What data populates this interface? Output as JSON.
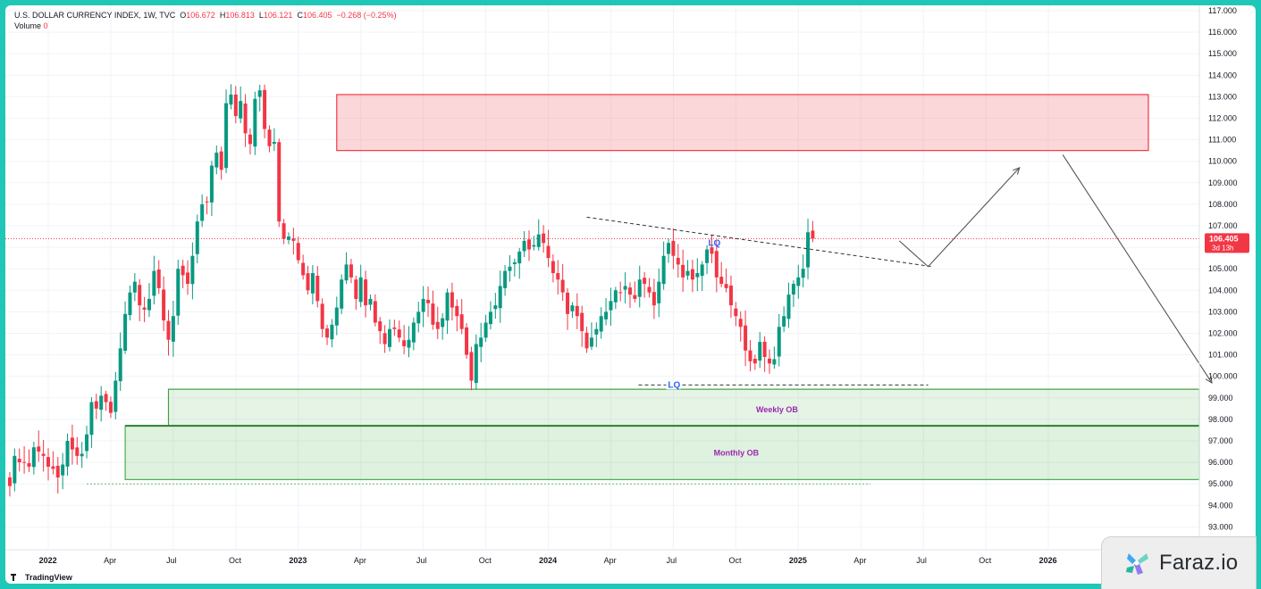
{
  "header": {
    "symbol": "U.S. DOLLAR CURRENCY INDEX, 1W, TVC",
    "open_label": "O",
    "open": "106.672",
    "high_label": "H",
    "high": "106.813",
    "low_label": "L",
    "low": "106.121",
    "close_label": "C",
    "close": "106.405",
    "change": "−0.268 (−0.25%)",
    "volume_label": "Volume",
    "volume": "0"
  },
  "price_tag": {
    "price": "106.405",
    "countdown": "3d 13h",
    "color": "#f23645"
  },
  "watermark": {
    "brand": "Faraz.io"
  },
  "footer": {
    "tradingview": "TradingView"
  },
  "colors": {
    "up": "#089981",
    "down": "#f23645",
    "grid": "#f0f3fa",
    "axis_text": "#131722",
    "lq": "#2962ff",
    "ob_text": "#9c27b0"
  },
  "chart_data": {
    "type": "candlestick",
    "title": "U.S. DOLLAR CURRENCY INDEX, 1W, TVC",
    "ylim": [
      92.0,
      117.5
    ],
    "y_ticks": [
      "117.000",
      "116.000",
      "115.000",
      "114.000",
      "113.000",
      "112.000",
      "111.000",
      "110.000",
      "109.000",
      "108.000",
      "107.000",
      "106.000",
      "105.000",
      "104.000",
      "103.000",
      "102.000",
      "101.000",
      "100.000",
      "99.000",
      "98.000",
      "97.000",
      "96.000",
      "95.000",
      "94.000",
      "93.000"
    ],
    "x_ticks": [
      {
        "label": "2022",
        "w": 0,
        "bold": true
      },
      {
        "label": "Apr",
        "w": 13
      },
      {
        "label": "Jul",
        "w": 26
      },
      {
        "label": "Oct",
        "w": 39
      },
      {
        "label": "2023",
        "w": 52,
        "bold": true
      },
      {
        "label": "Apr",
        "w": 65
      },
      {
        "label": "Jul",
        "w": 78
      },
      {
        "label": "Oct",
        "w": 91
      },
      {
        "label": "2024",
        "w": 104,
        "bold": true
      },
      {
        "label": "Apr",
        "w": 117
      },
      {
        "label": "Jul",
        "w": 130
      },
      {
        "label": "Oct",
        "w": 143
      },
      {
        "label": "2025",
        "w": 156,
        "bold": true
      },
      {
        "label": "Apr",
        "w": 169
      },
      {
        "label": "Jul",
        "w": 182
      },
      {
        "label": "Oct",
        "w": 195
      },
      {
        "label": "2026",
        "w": 208,
        "bold": true
      }
    ],
    "week_origin_offset": -8,
    "weekly_closes": [
      94.9,
      96.3,
      96.0,
      96.0,
      95.8,
      96.7,
      96.5,
      96.3,
      95.8,
      95.7,
      95.3,
      95.9,
      97.0,
      96.6,
      96.3,
      96.4,
      97.3,
      98.8,
      98.5,
      99.1,
      98.8,
      98.3,
      99.8,
      101.3,
      102.9,
      103.9,
      104.4,
      103.3,
      103.1,
      103.6,
      104.9,
      104.1,
      102.6,
      101.7,
      102.8,
      105.0,
      104.7,
      104.3,
      105.6,
      107.2,
      108.0,
      108.1,
      109.8,
      110.4,
      109.6,
      112.7,
      113.1,
      112.1,
      112.8,
      111.3,
      110.8,
      112.9,
      113.3,
      111.5,
      110.7,
      110.9,
      107.2,
      106.4,
      106.5,
      106.3,
      105.4,
      104.7,
      104.0,
      104.8,
      103.5,
      102.2,
      101.8,
      102.4,
      103.2,
      104.5,
      105.2,
      104.6,
      103.6,
      104.6,
      103.3,
      103.6,
      102.5,
      102.1,
      101.5,
      102.2,
      102.2,
      101.8,
      101.4,
      101.7,
      102.5,
      103.0,
      103.6,
      103.4,
      102.4,
      102.2,
      102.7,
      103.9,
      103.2,
      102.8,
      102.2,
      101.0,
      99.8,
      101.5,
      101.8,
      102.5,
      103.0,
      103.3,
      104.2,
      104.9,
      105.1,
      105.3,
      105.8,
      106.3,
      105.9,
      106.1,
      106.6,
      106.2,
      105.5,
      104.8,
      104.5,
      103.9,
      102.9,
      103.3,
      102.8,
      102.1,
      101.3,
      101.8,
      102.2,
      102.8,
      103.0,
      103.5,
      104.0,
      103.9,
      104.2,
      103.8,
      103.6,
      104.5,
      104.3,
      103.9,
      103.3,
      104.4,
      105.6,
      106.2,
      105.6,
      105.2,
      104.6,
      104.9,
      104.5,
      104.8,
      105.2,
      105.9,
      105.7,
      104.6,
      104.3,
      104.1,
      103.3,
      102.8,
      102.3,
      101.2,
      100.7,
      100.6,
      101.6,
      100.9,
      100.6,
      100.8,
      102.3,
      102.8,
      103.8,
      104.3,
      104.6,
      105.0,
      106.7,
      106.4
    ],
    "levels": {
      "last_price": 106.405,
      "lq_top_start": {
        "week": 112,
        "price": 107.4
      },
      "lq_top_end": {
        "week": 183,
        "price": 105.1
      },
      "lq_top_label": "LQ",
      "lq_bottom_price": 99.6,
      "lq_bottom_from_week": 125,
      "lq_bottom_to_week": 183,
      "lq_bottom_label": "LQ",
      "supply_zone": {
        "top": 113.1,
        "bottom": 110.5,
        "from_week": 60
      },
      "weekly_ob": {
        "top": 99.4,
        "bottom": 97.7,
        "from_week": 25,
        "label": "Weekly OB"
      },
      "monthly_ob": {
        "top": 97.7,
        "bottom": 95.2,
        "from_week": 16,
        "label": "Monthly OB"
      },
      "projection": [
        {
          "week": 177,
          "price": 106.3
        },
        {
          "week": 183,
          "price": 105.1
        },
        {
          "week": 202,
          "price": 109.7
        }
      ],
      "projection_down": [
        {
          "week": 211,
          "price": 110.3
        },
        {
          "week": 242,
          "price": 99.7
        }
      ],
      "low_dotted_price": 95.0
    }
  }
}
